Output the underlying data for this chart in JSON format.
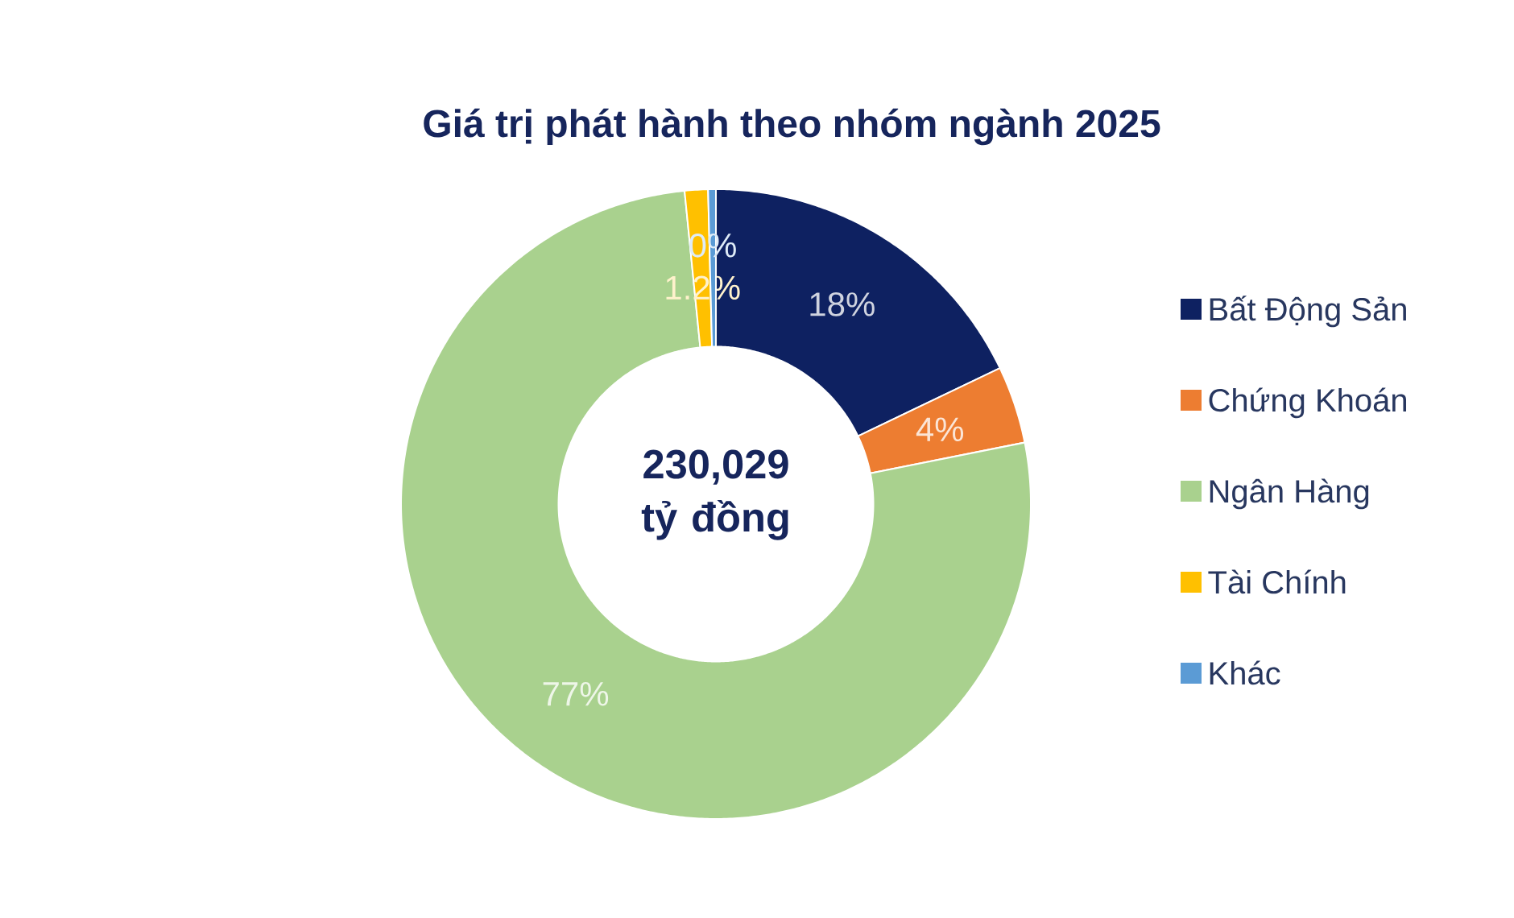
{
  "chart_data": {
    "type": "donut",
    "title": "Giá trị phát hành theo nhóm ngành 2025",
    "categories": [
      "Bất Động Sản",
      "Chứng Khoán",
      "Ngân Hàng",
      "Tài Chính",
      "Khác"
    ],
    "values": [
      18,
      4,
      77,
      1.2,
      0.4
    ],
    "colors": [
      "#0e2161",
      "#ed7d31",
      "#a9d18e",
      "#ffc000",
      "#5b9bd5"
    ],
    "value_labels": [
      "18%",
      "4%",
      "77%",
      "1.2%",
      "0%"
    ],
    "annotations": [
      "230,029 tỷ đồng"
    ],
    "legend": "right"
  }
}
